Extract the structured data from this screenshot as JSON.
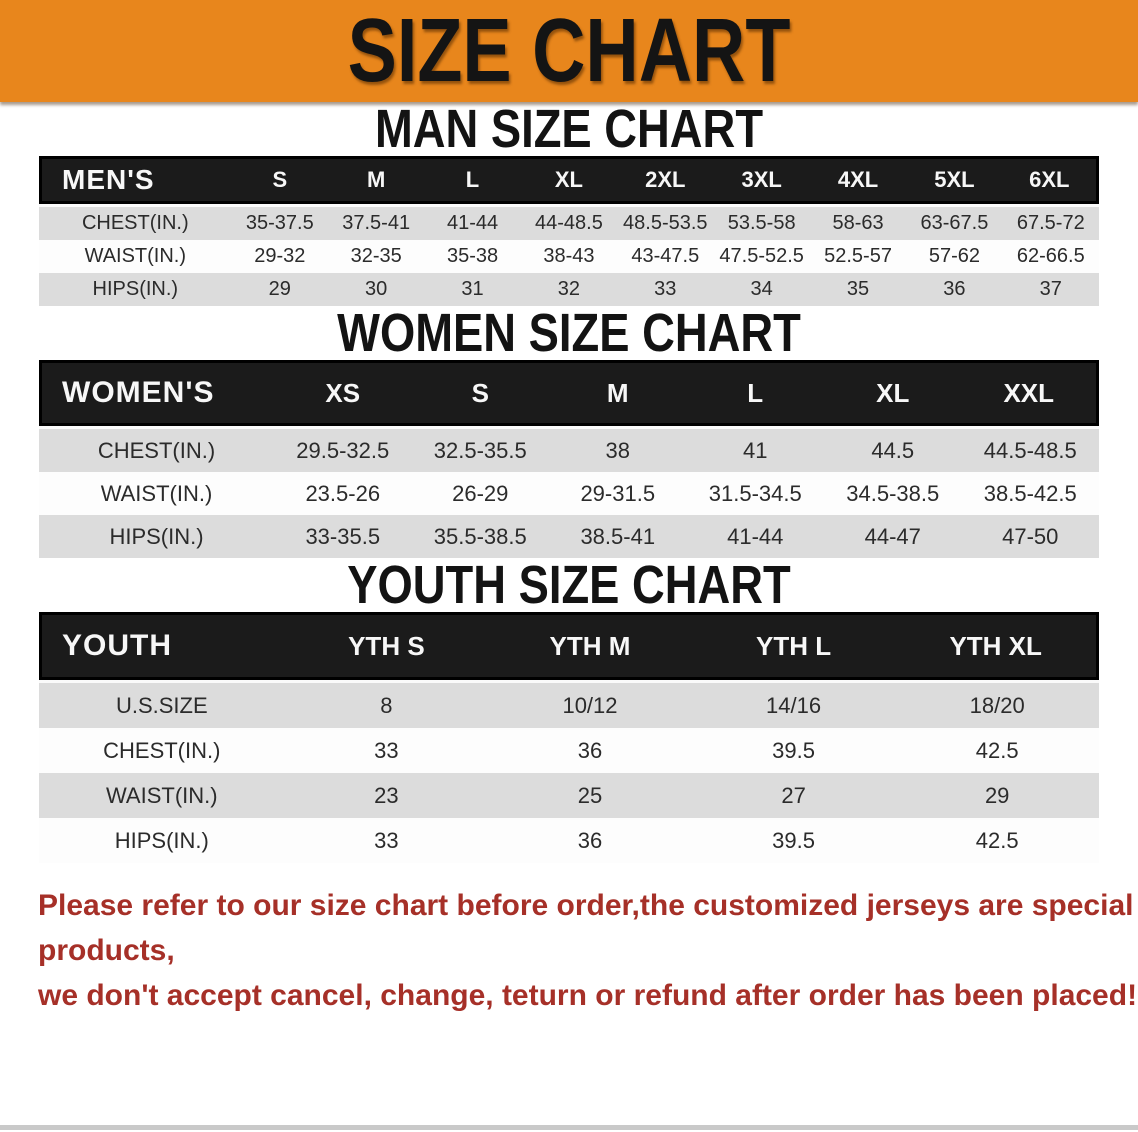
{
  "banner": {
    "title": "SIZE CHART",
    "bg_color": "#e8861c",
    "text_color": "#141414"
  },
  "sections": [
    {
      "heading": "MAN SIZE CHART",
      "table": {
        "header_label": "MEN'S",
        "columns": [
          "S",
          "M",
          "L",
          "XL",
          "2XL",
          "3XL",
          "4XL",
          "5XL",
          "6XL"
        ],
        "rows": [
          {
            "label": "CHEST(IN.)",
            "values": [
              "35-37.5",
              "37.5-41",
              "41-44",
              "44-48.5",
              "48.5-53.5",
              "53.5-58",
              "58-63",
              "63-67.5",
              "67.5-72"
            ]
          },
          {
            "label": "WAIST(IN.)",
            "values": [
              "29-32",
              "32-35",
              "35-38",
              "38-43",
              "43-47.5",
              "47.5-52.5",
              "52.5-57",
              "57-62",
              "62-66.5"
            ]
          },
          {
            "label": "HIPS(IN.)",
            "values": [
              "29",
              "30",
              "31",
              "32",
              "33",
              "34",
              "35",
              "36",
              "37"
            ]
          }
        ]
      }
    },
    {
      "heading": "WOMEN SIZE CHART",
      "table": {
        "header_label": "WOMEN'S",
        "columns": [
          "XS",
          "S",
          "M",
          "L",
          "XL",
          "XXL"
        ],
        "rows": [
          {
            "label": "CHEST(IN.)",
            "values": [
              "29.5-32.5",
              "32.5-35.5",
              "38",
              "41",
              "44.5",
              "44.5-48.5"
            ]
          },
          {
            "label": "WAIST(IN.)",
            "values": [
              "23.5-26",
              "26-29",
              "29-31.5",
              "31.5-34.5",
              "34.5-38.5",
              "38.5-42.5"
            ]
          },
          {
            "label": "HIPS(IN.)",
            "values": [
              "33-35.5",
              "35.5-38.5",
              "38.5-41",
              "41-44",
              "44-47",
              "47-50"
            ]
          }
        ]
      }
    },
    {
      "heading": "YOUTH SIZE CHART",
      "table": {
        "header_label": "YOUTH",
        "columns": [
          "YTH S",
          "YTH M",
          "YTH L",
          "YTH XL"
        ],
        "rows": [
          {
            "label": "U.S.SIZE",
            "values": [
              "8",
              "10/12",
              "14/16",
              "18/20"
            ]
          },
          {
            "label": "CHEST(IN.)",
            "values": [
              "33",
              "36",
              "39.5",
              "42.5"
            ]
          },
          {
            "label": "WAIST(IN.)",
            "values": [
              "23",
              "25",
              "27",
              "29"
            ]
          },
          {
            "label": "HIPS(IN.)",
            "values": [
              "33",
              "36",
              "39.5",
              "42.5"
            ]
          }
        ]
      }
    }
  ],
  "disclaimer": {
    "lines": [
      "Please refer to our size chart before order,the customized jerseys are special products,",
      "we don't accept cancel, change, teturn or refund after order has been placed!"
    ],
    "color": "#a63028"
  },
  "colors": {
    "banner_orange": "#e8861c",
    "table_header_black": "#1b1b1b",
    "row_stripe_gray": "#dcdcdc",
    "row_white": "#fdfdfd",
    "disclaimer_red": "#a63028"
  }
}
